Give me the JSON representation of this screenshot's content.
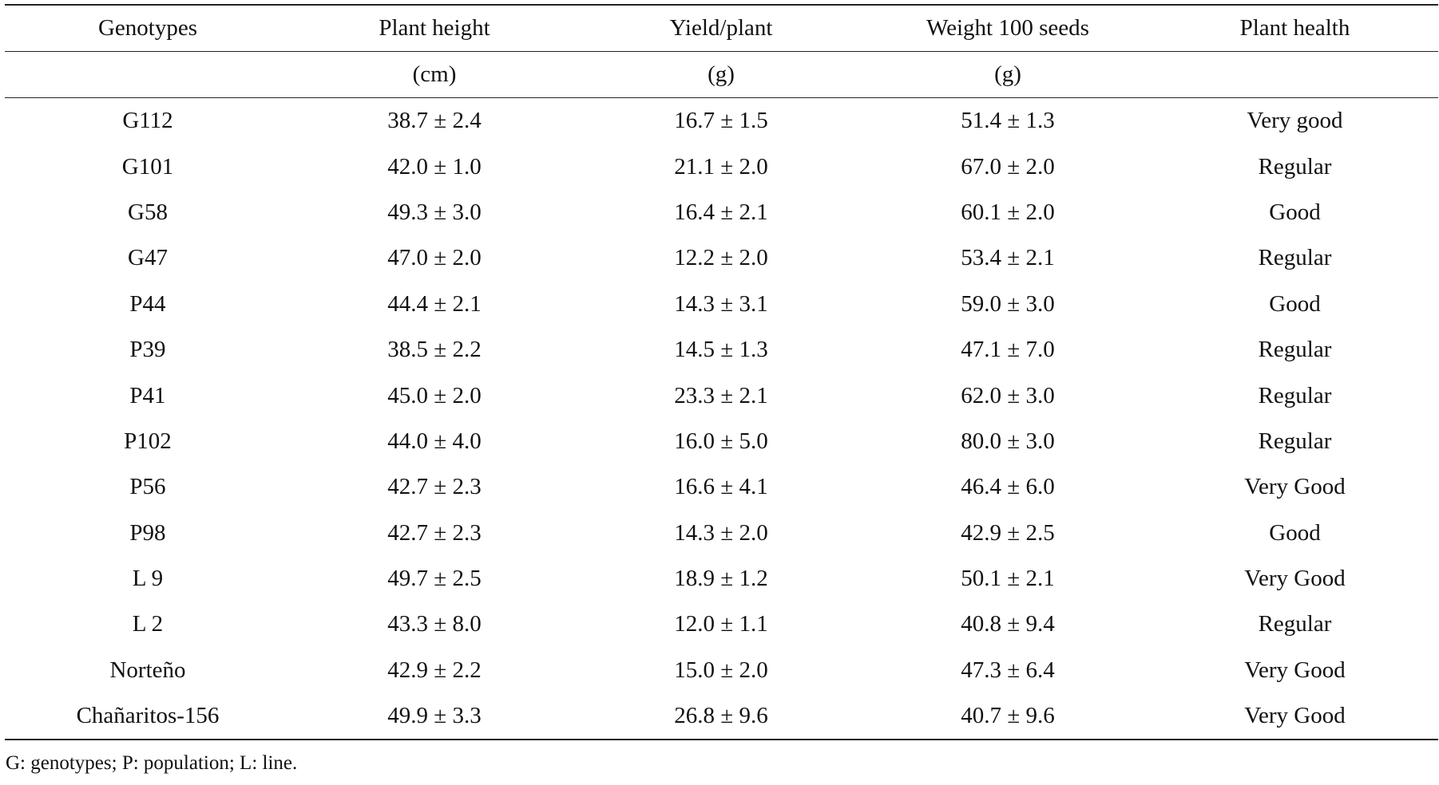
{
  "table": {
    "headers": [
      "Genotypes",
      "Plant height",
      "Yield/plant",
      "Weight 100 seeds",
      "Plant health"
    ],
    "units": [
      "",
      "(cm)",
      "(g)",
      "(g)",
      ""
    ],
    "rows": [
      [
        "G112",
        "38.7 ± 2.4",
        "16.7 ± 1.5",
        "51.4 ± 1.3",
        "Very good"
      ],
      [
        "G101",
        "42.0 ± 1.0",
        "21.1 ± 2.0",
        "67.0 ± 2.0",
        "Regular"
      ],
      [
        "G58",
        "49.3 ± 3.0",
        "16.4 ± 2.1",
        "60.1 ± 2.0",
        "Good"
      ],
      [
        "G47",
        "47.0 ± 2.0",
        "12.2 ± 2.0",
        "53.4 ± 2.1",
        "Regular"
      ],
      [
        "P44",
        "44.4 ± 2.1",
        "14.3 ± 3.1",
        "59.0 ± 3.0",
        "Good"
      ],
      [
        "P39",
        "38.5 ± 2.2",
        "14.5 ± 1.3",
        "47.1 ± 7.0",
        "Regular"
      ],
      [
        "P41",
        "45.0 ± 2.0",
        "23.3 ± 2.1",
        "62.0 ± 3.0",
        "Regular"
      ],
      [
        "P102",
        "44.0 ± 4.0",
        "16.0 ± 5.0",
        "80.0 ± 3.0",
        "Regular"
      ],
      [
        "P56",
        "42.7 ± 2.3",
        "16.6 ± 4.1",
        "46.4 ± 6.0",
        "Very Good"
      ],
      [
        "P98",
        "42.7 ± 2.3",
        "14.3 ± 2.0",
        "42.9 ± 2.5",
        "Good"
      ],
      [
        "L 9",
        "49.7 ± 2.5",
        "18.9 ± 1.2",
        "50.1 ± 2.1",
        "Very Good"
      ],
      [
        "L 2",
        "43.3 ± 8.0",
        "12.0 ± 1.1",
        "40.8 ± 9.4",
        "Regular"
      ],
      [
        "Norteño",
        "42.9 ± 2.2",
        "15.0 ± 2.0",
        "47.3 ± 6.4",
        "Very Good"
      ],
      [
        "Chañaritos-156",
        "49.9 ± 3.3",
        "26.8 ± 9.6",
        "40.7 ± 9.6",
        "Very Good"
      ]
    ]
  },
  "footnote": "G: genotypes; P: population; L: line."
}
